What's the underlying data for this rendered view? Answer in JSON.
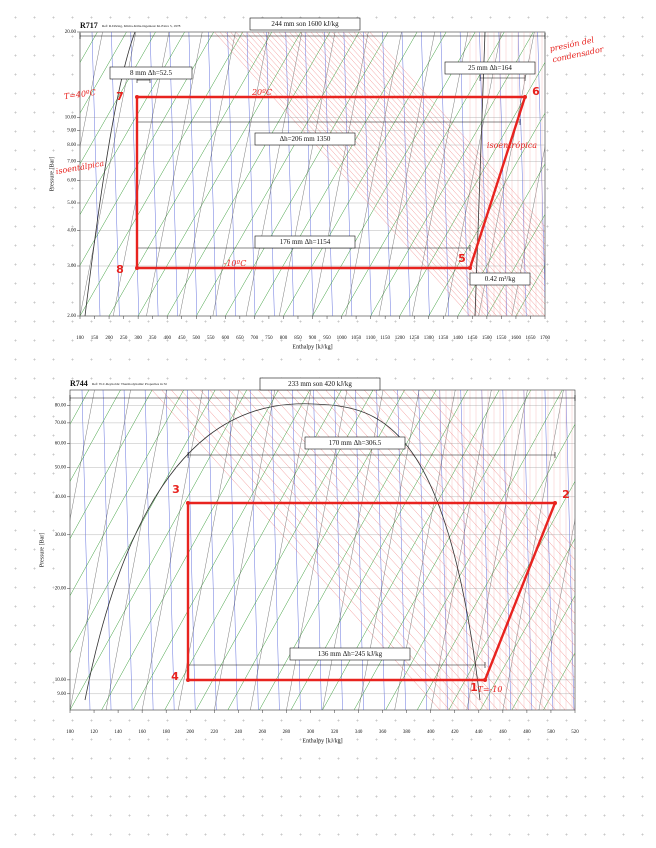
{
  "diagrams": [
    {
      "title": "R717",
      "reference": "Ref: R.Döring, Klima-Kälte-Ingenieur Ki-Extra 5, 1978",
      "y_axis_label": "Pressure [Bar]",
      "x_axis_label": "Enthalpy [kJ/kg]",
      "y_tick_labels": [
        "20.00",
        "10.00",
        "9.00",
        "8.00",
        "7.00",
        "6.00",
        "5.00",
        "4.00",
        "3.00",
        "2.00"
      ],
      "x_tick_labels": [
        "100",
        "150",
        "200",
        "250",
        "300",
        "350",
        "400",
        "450",
        "500",
        "550",
        "600",
        "650",
        "700",
        "750",
        "800",
        "850",
        "900",
        "950",
        "1000",
        "1050",
        "1100",
        "1150",
        "1200",
        "1250",
        "1300",
        "1350",
        "1400",
        "1450",
        "1500",
        "1550",
        "1600",
        "1650",
        "1700"
      ],
      "boxes": [
        "244 mm son 1600 kJ/kg",
        "8 mm Δh=52.5",
        "25 mm Δh=164",
        "Δh=206 mm 1350",
        "176 mm Δh=1154",
        "0.42 m³/kg"
      ],
      "handwritten": [
        "T=40ºC",
        "20ºC",
        "-10ºC",
        "presión del",
        "condensador",
        "isoentálpica",
        "isoentrópica"
      ],
      "points": [
        "7",
        "6",
        "5",
        "8"
      ]
    },
    {
      "title": "R744",
      "reference": "Ref: W.C.Reynolds: Thermodynamic Properties in SI",
      "y_axis_label": "Pressure [Bar]",
      "x_axis_label": "Enthalpy [kJ/kg]",
      "y_tick_labels": [
        "80.00",
        "70.00",
        "60.00",
        "50.00",
        "40.00",
        "30.00",
        "20.00",
        "10.00",
        "9.00"
      ],
      "x_tick_labels": [
        "100",
        "120",
        "140",
        "160",
        "180",
        "200",
        "220",
        "240",
        "260",
        "280",
        "300",
        "320",
        "340",
        "360",
        "380",
        "400",
        "420",
        "440",
        "460",
        "480",
        "500",
        "520"
      ],
      "boxes": [
        "233 mm son 420 kJ/kg",
        "170 mm Δh=306.5",
        "136 mm Δh=245 kJ/kg"
      ],
      "handwritten": [
        "T=-10"
      ],
      "points": [
        "3",
        "2",
        "1",
        "4"
      ]
    }
  ]
}
